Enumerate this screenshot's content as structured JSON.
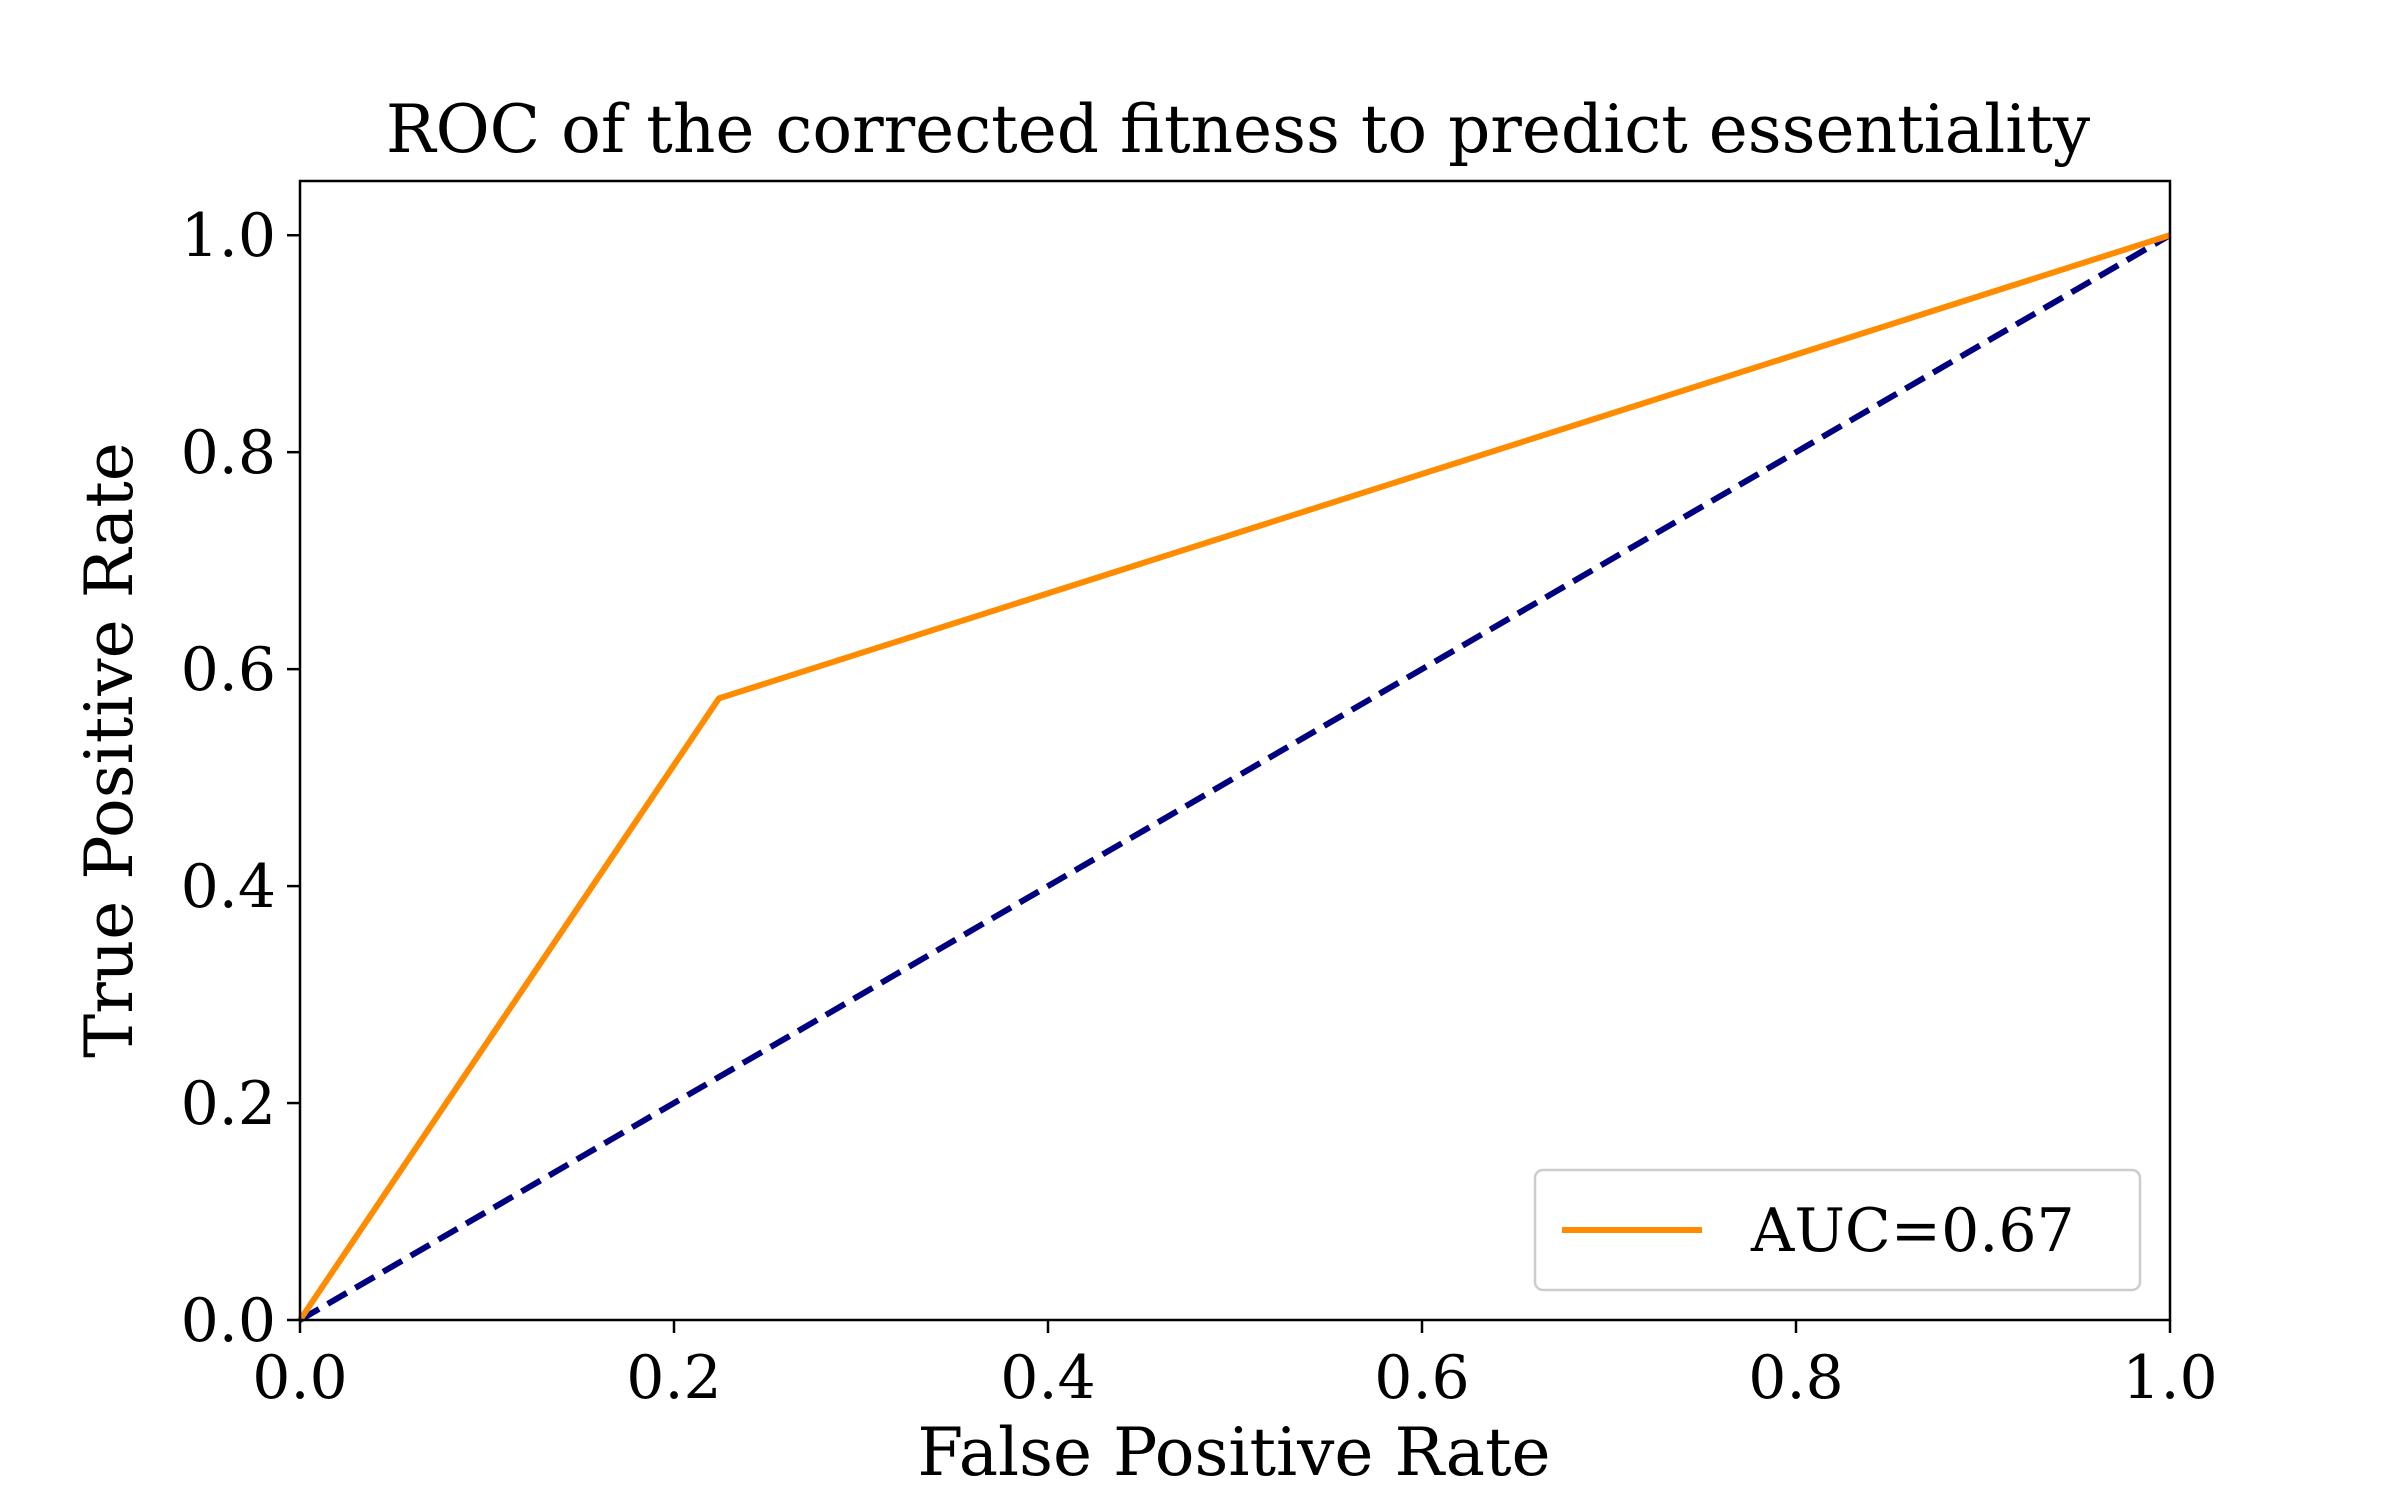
{
  "chart_data": {
    "type": "line",
    "title": "ROC of the  corrected fitness to predict essentiality",
    "xlabel": "False Positive Rate",
    "ylabel": "True Positive Rate",
    "xlim": [
      0.0,
      1.0
    ],
    "ylim": [
      0.0,
      1.05
    ],
    "xticks": [
      0.0,
      0.2,
      0.4,
      0.6,
      0.8,
      1.0
    ],
    "yticks": [
      0.0,
      0.2,
      0.4,
      0.6,
      0.8,
      1.0
    ],
    "xtick_labels": [
      "0.0",
      "0.2",
      "0.4",
      "0.6",
      "0.8",
      "1.0"
    ],
    "ytick_labels": [
      "0.0",
      "0.2",
      "0.4",
      "0.6",
      "0.8",
      "1.0"
    ],
    "grid": false,
    "legend_position": "lower-right",
    "series": [
      {
        "name": "AUC=0.67",
        "color": "#ff8c00",
        "style": "solid",
        "x": [
          0.0,
          0.224,
          1.0
        ],
        "y": [
          0.0,
          0.573,
          1.0
        ]
      },
      {
        "color": "#000080",
        "style": "dashed",
        "x": [
          0.0,
          1.0
        ],
        "y": [
          0.0,
          1.0
        ]
      }
    ]
  }
}
